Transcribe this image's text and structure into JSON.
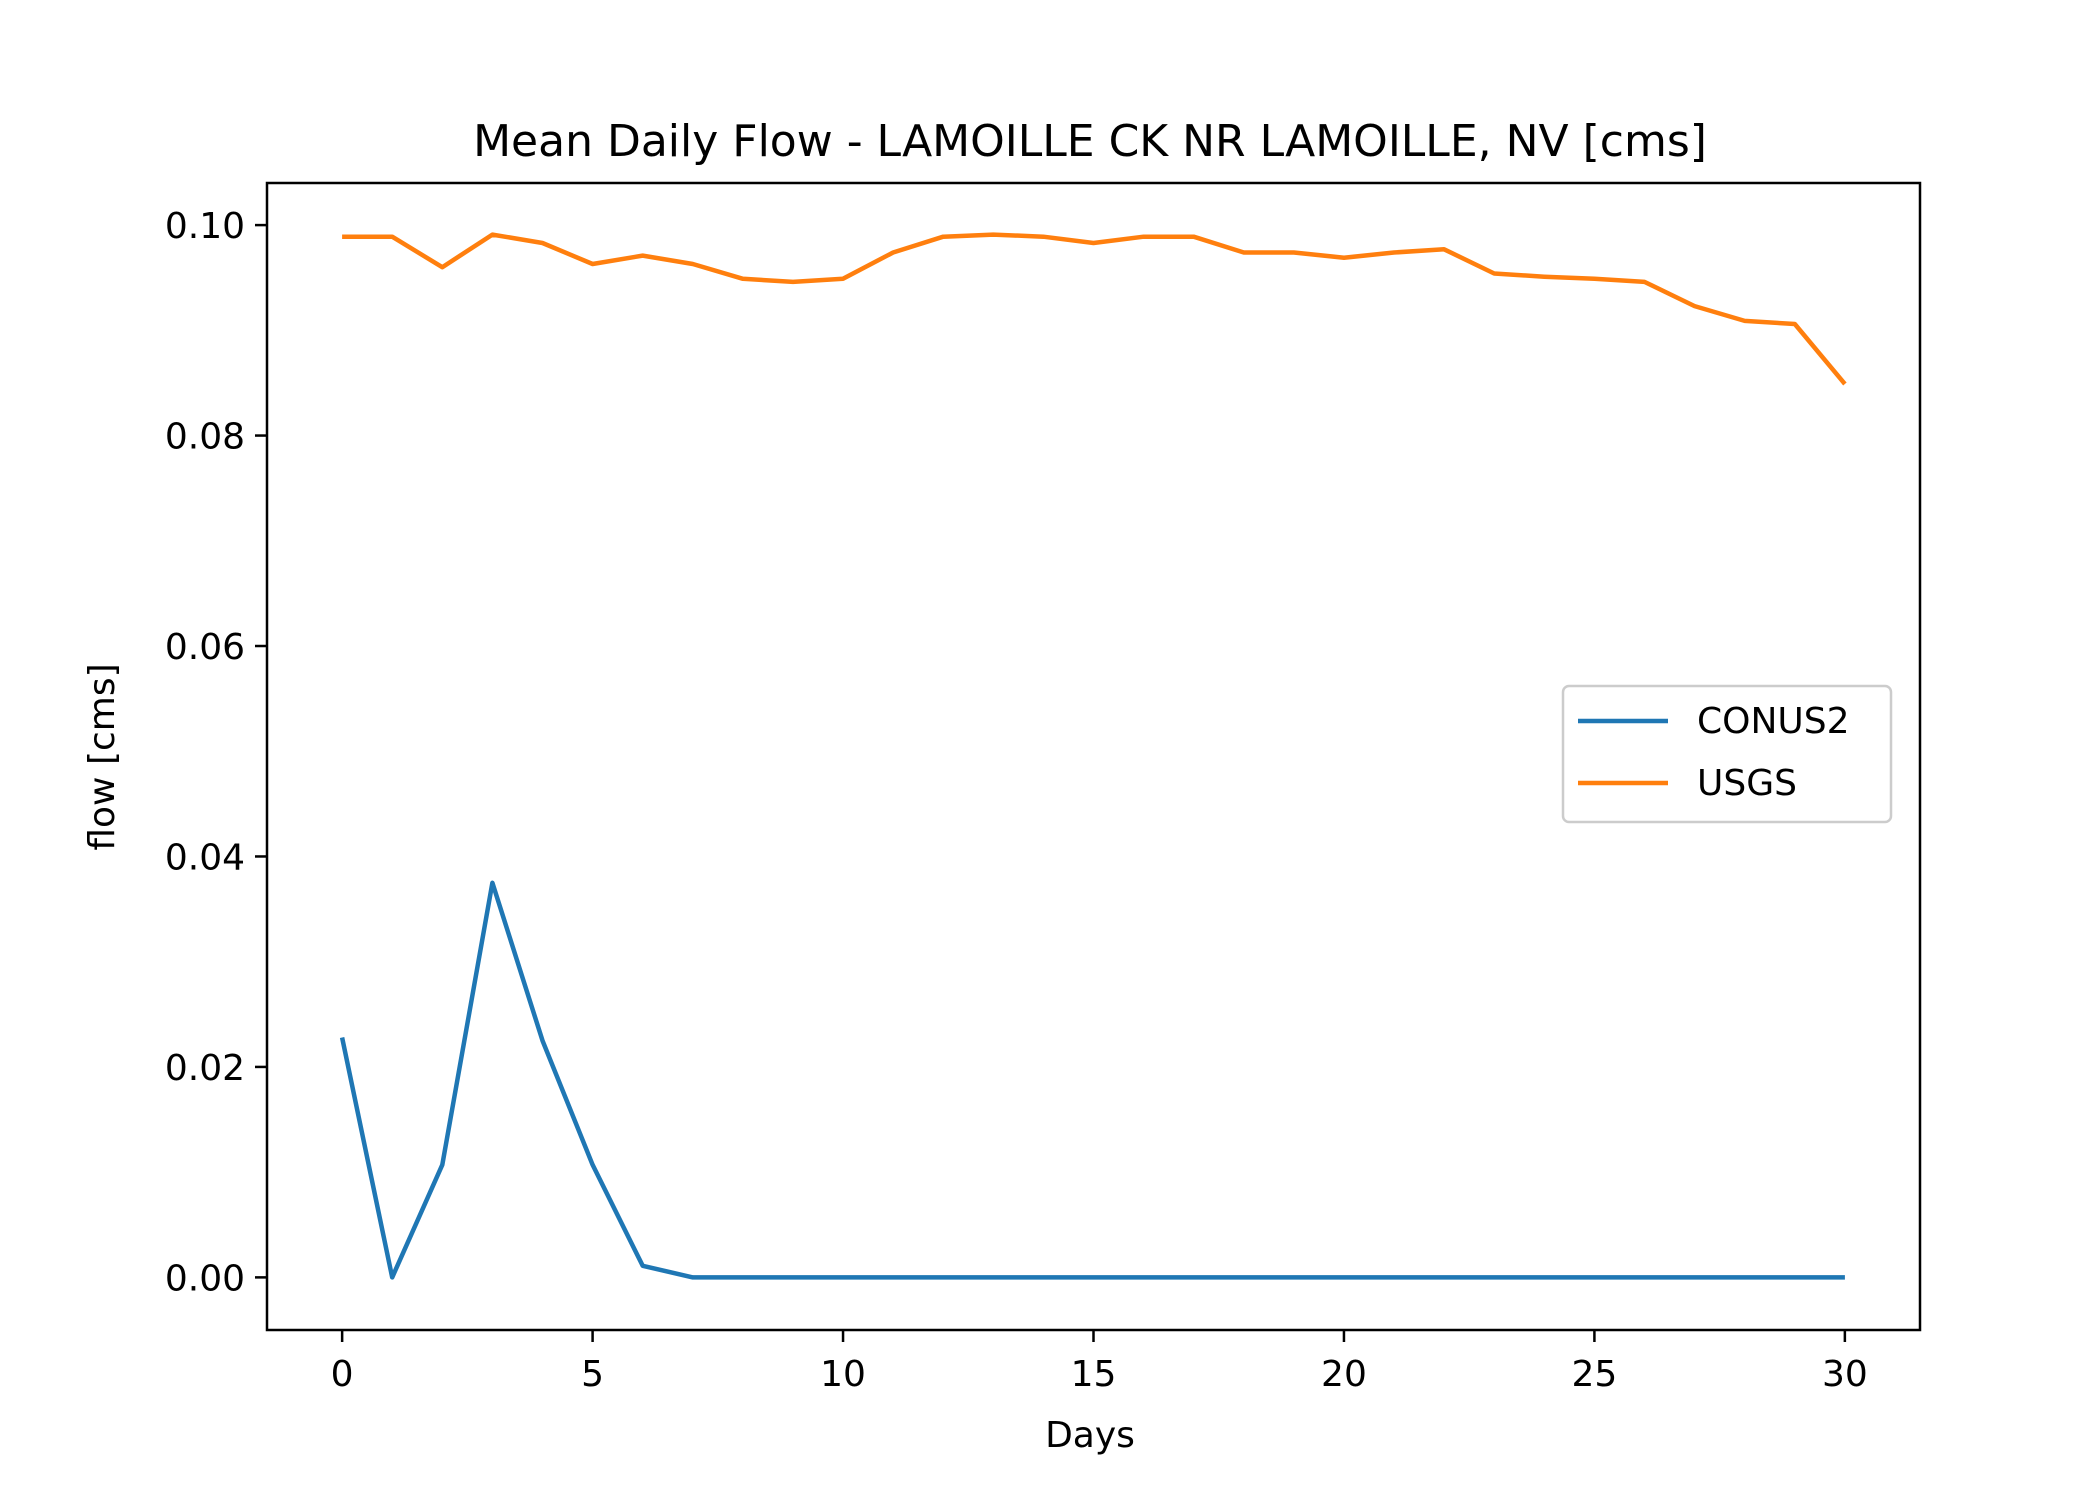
{
  "chart_data": {
    "type": "line",
    "title": "Mean Daily Flow - LAMOILLE CK NR LAMOILLE, NV [cms]",
    "xlabel": "Days",
    "ylabel": "flow [cms]",
    "xlim": [
      -1.5,
      31.5
    ],
    "ylim": [
      -0.005,
      0.104
    ],
    "xticks": [
      0,
      5,
      10,
      15,
      20,
      25,
      30
    ],
    "xtick_labels": [
      "0",
      "5",
      "10",
      "15",
      "20",
      "25",
      "30"
    ],
    "yticks": [
      0.0,
      0.02,
      0.04,
      0.06,
      0.08,
      0.1
    ],
    "ytick_labels": [
      "0.00",
      "0.02",
      "0.04",
      "0.06",
      "0.08",
      "0.10"
    ],
    "grid": false,
    "legend": {
      "placement": "center-right"
    },
    "x": [
      0,
      1,
      2,
      3,
      4,
      5,
      6,
      7,
      8,
      9,
      10,
      11,
      12,
      13,
      14,
      15,
      16,
      17,
      18,
      19,
      20,
      21,
      22,
      23,
      24,
      25,
      26,
      27,
      28,
      29,
      30
    ],
    "series": [
      {
        "name": "CONUS2",
        "color": "#1f77b4",
        "values": [
          0.0228,
          0.0,
          0.0107,
          0.0375,
          0.0225,
          0.0107,
          0.0011,
          0.0,
          0.0,
          0.0,
          0.0,
          0.0,
          0.0,
          0.0,
          0.0,
          0.0,
          0.0,
          0.0,
          0.0,
          0.0,
          0.0,
          0.0,
          0.0,
          0.0,
          0.0,
          0.0,
          0.0,
          0.0,
          0.0,
          0.0,
          0.0
        ]
      },
      {
        "name": "USGS",
        "color": "#ff7f0e",
        "values": [
          0.0989,
          0.0989,
          0.096,
          0.0991,
          0.0983,
          0.0963,
          0.0971,
          0.0963,
          0.0949,
          0.0946,
          0.0949,
          0.0974,
          0.0989,
          0.0991,
          0.0989,
          0.0983,
          0.0989,
          0.0989,
          0.0974,
          0.0974,
          0.0969,
          0.0974,
          0.0977,
          0.0954,
          0.0951,
          0.0949,
          0.0946,
          0.0923,
          0.0909,
          0.0906,
          0.0849
        ]
      }
    ]
  }
}
